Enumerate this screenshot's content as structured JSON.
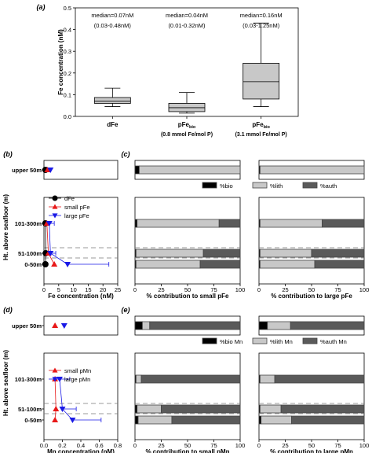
{
  "chart_data": [
    {
      "panel": "(a)",
      "type": "box",
      "ylabel": "Fe concentration (nM)",
      "ylim": [
        0,
        0.5
      ],
      "yticks": [
        "0.0",
        "0.1",
        "0.2",
        "0.3",
        "0.4",
        "0.5"
      ],
      "categories": [
        "dFe",
        "pFe_bio",
        "pFe_bio"
      ],
      "category_notes": [
        "",
        "(0.8 mmol Fe/mol P)",
        "(3.1 mmol Fe/mol P)"
      ],
      "annotations": [
        {
          "median": "median=0.07nM",
          "range": "(0.03-0.48nM)"
        },
        {
          "median": "median=0.04nM",
          "range": "(0.01-0.32nM)"
        },
        {
          "median": "median=0.16nM",
          "range": "(0.03-1.25nM)"
        }
      ],
      "boxes": [
        {
          "whisker_low": 0.045,
          "q1": 0.06,
          "median": 0.07,
          "q3": 0.087,
          "whisker_high": 0.13
        },
        {
          "whisker_low": 0.015,
          "q1": 0.022,
          "median": 0.04,
          "q3": 0.06,
          "whisker_high": 0.11
        },
        {
          "whisker_low": 0.045,
          "q1": 0.08,
          "median": 0.16,
          "q3": 0.245,
          "whisker_high": 0.43
        }
      ]
    },
    {
      "panel": "(b)",
      "type": "scatter",
      "xlabel": "Fe concentration (nM)",
      "ylabel": "Ht. above seafloor (m)",
      "xlim": [
        0,
        25
      ],
      "xticks": [
        "0",
        "5",
        "10",
        "15",
        "20",
        "25"
      ],
      "depth_labels": [
        "upper 50m",
        "101-300m",
        "51-100m",
        "0-50m"
      ],
      "legend": [
        "dFe",
        "small pFe",
        "large pFe"
      ],
      "series": [
        {
          "values": [
            0.5,
            0.5,
            0.6,
            0.5
          ]
        },
        {
          "values": [
            1.2,
            1.0,
            1.5,
            3.5
          ]
        },
        {
          "values": [
            2.2,
            1.8,
            2.2,
            8.0
          ]
        }
      ],
      "error_high": [
        null,
        3.5,
        4.0,
        22.0
      ]
    },
    {
      "panel": "(c)",
      "type": "stacked-bar",
      "legend": [
        "%bio",
        "%lith",
        "%auth"
      ],
      "depth_labels": [
        "upper 50m",
        "101-300m",
        "51-100m",
        "0-50m"
      ],
      "xticks": [
        "0",
        "25",
        "50",
        "75",
        "100"
      ],
      "charts": [
        {
          "xlabel": "% contribution to small pFe",
          "rows": [
            [
              4,
              96,
              0
            ],
            [
              2,
              78,
              20
            ],
            [
              1,
              64,
              35
            ],
            [
              1,
              61,
              38
            ]
          ]
        },
        {
          "xlabel": "% contribution to large pFe",
          "rows": [
            [
              1,
              99,
              0
            ],
            [
              1,
              59,
              40
            ],
            [
              1,
              49,
              50
            ],
            [
              1,
              52,
              47
            ]
          ]
        }
      ]
    },
    {
      "panel": "(d)",
      "type": "scatter",
      "xlabel": "Mn concentration (nM)",
      "ylabel": "Ht. above seafloor (m)",
      "xlim": [
        0,
        0.8
      ],
      "xticks": [
        "0.0",
        "0.2",
        "0.4",
        "0.6",
        "0.8"
      ],
      "depth_labels": [
        "upper 50m",
        "101-300m",
        "51-100m",
        "0-50m"
      ],
      "legend": [
        "small pMn",
        "large pMn"
      ],
      "series": [
        {
          "values": [
            0.12,
            0.12,
            0.13,
            0.12
          ]
        },
        {
          "values": [
            0.22,
            0.17,
            0.2,
            0.31
          ]
        }
      ],
      "error_high": [
        null,
        0.28,
        0.35,
        0.62
      ]
    },
    {
      "panel": "(e)",
      "type": "stacked-bar",
      "legend": [
        "%bio Mn",
        "%lith Mn",
        "%auth Mn"
      ],
      "depth_labels": [
        "upper 50m",
        "101-300m",
        "51-100m",
        "0-50m"
      ],
      "xticks": [
        "0",
        "25",
        "50",
        "75",
        "100"
      ],
      "charts": [
        {
          "xlabel": "% contribution to small pMn",
          "rows": [
            [
              7,
              7,
              86
            ],
            [
              1,
              5,
              94
            ],
            [
              2,
              23,
              75
            ],
            [
              3,
              32,
              65
            ]
          ]
        },
        {
          "xlabel": "% contribution to large pMn",
          "rows": [
            [
              8,
              22,
              70
            ],
            [
              1,
              14,
              85
            ],
            [
              1,
              20,
              79
            ],
            [
              2,
              29,
              69
            ]
          ]
        }
      ]
    }
  ]
}
